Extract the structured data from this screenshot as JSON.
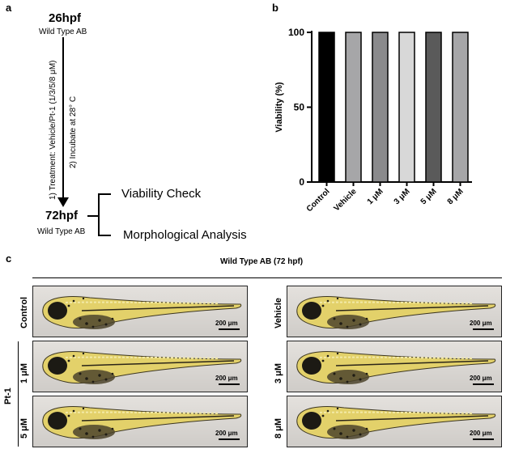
{
  "panel_a": {
    "letter": "a",
    "start_time": "26hpf",
    "start_strain": "Wild Type AB",
    "step1": "1) Treatment: Vehicle/Pt-1 (1/3/5/8 μM)",
    "step2": "2) Incubate at 28° C",
    "end_time": "72hpf",
    "end_strain": "Wild Type AB",
    "branch1": "Viability Check",
    "branch2": "Morphological Analysis"
  },
  "panel_b": {
    "letter": "b"
  },
  "chart_data": {
    "type": "bar",
    "categories": [
      "Control",
      "Vehicle",
      "1 μM",
      "3 μM",
      "5 μM",
      "8 μM"
    ],
    "values": [
      100,
      100,
      100,
      100,
      100,
      100
    ],
    "bar_colors": [
      "#000000",
      "#a6a6a8",
      "#8a8a8c",
      "#d8d8d8",
      "#5a5a5a",
      "#a6a6a8"
    ],
    "xlabel": "",
    "ylabel": "Viability (%)",
    "ylim": [
      0,
      100
    ],
    "yticks": [
      "0",
      "50",
      "100"
    ]
  },
  "panel_c": {
    "letter": "c",
    "title": "Wild Type AB (72 hpf)",
    "group_label": "Pt-1",
    "scale_text": "200 μm",
    "images": [
      {
        "label": "Control"
      },
      {
        "label": "Vehicle"
      },
      {
        "label": "1 μM"
      },
      {
        "label": "3 μM"
      },
      {
        "label": "5 μM"
      },
      {
        "label": "8 μM"
      }
    ]
  }
}
